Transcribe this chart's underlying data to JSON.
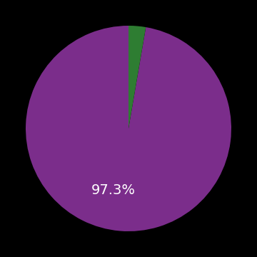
{
  "values": [
    97.3,
    2.7
  ],
  "colors": [
    "#7B2D8B",
    "#2E7D32"
  ],
  "label_text": "97.3%",
  "label_color": "#ffffff",
  "label_fontsize": 14,
  "background_color": "#000000",
  "startangle": 90,
  "figsize": [
    3.6,
    3.6
  ],
  "dpi": 100
}
